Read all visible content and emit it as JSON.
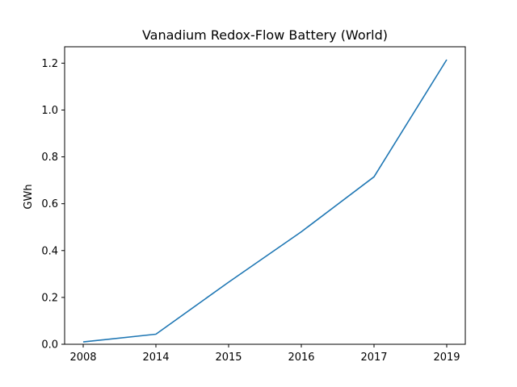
{
  "chart_data": {
    "type": "line",
    "title": "Vanadium Redox-Flow Battery (World)",
    "xlabel": "",
    "ylabel": "GWh",
    "categories": [
      "2008",
      "2014",
      "2015",
      "2016",
      "2017",
      "2019"
    ],
    "series": [
      {
        "values": [
          0.01,
          0.043,
          0.265,
          0.48,
          0.715,
          1.215
        ],
        "color": "#1f77b4"
      }
    ],
    "ylim": [
      0,
      1.27
    ],
    "yticks": [
      0.0,
      0.2,
      0.4,
      0.6,
      0.8,
      1.0,
      1.2
    ],
    "ytick_labels": [
      "0.0",
      "0.2",
      "0.4",
      "0.6",
      "0.8",
      "1.0",
      "1.2"
    ],
    "grid": false,
    "legend": false
  }
}
